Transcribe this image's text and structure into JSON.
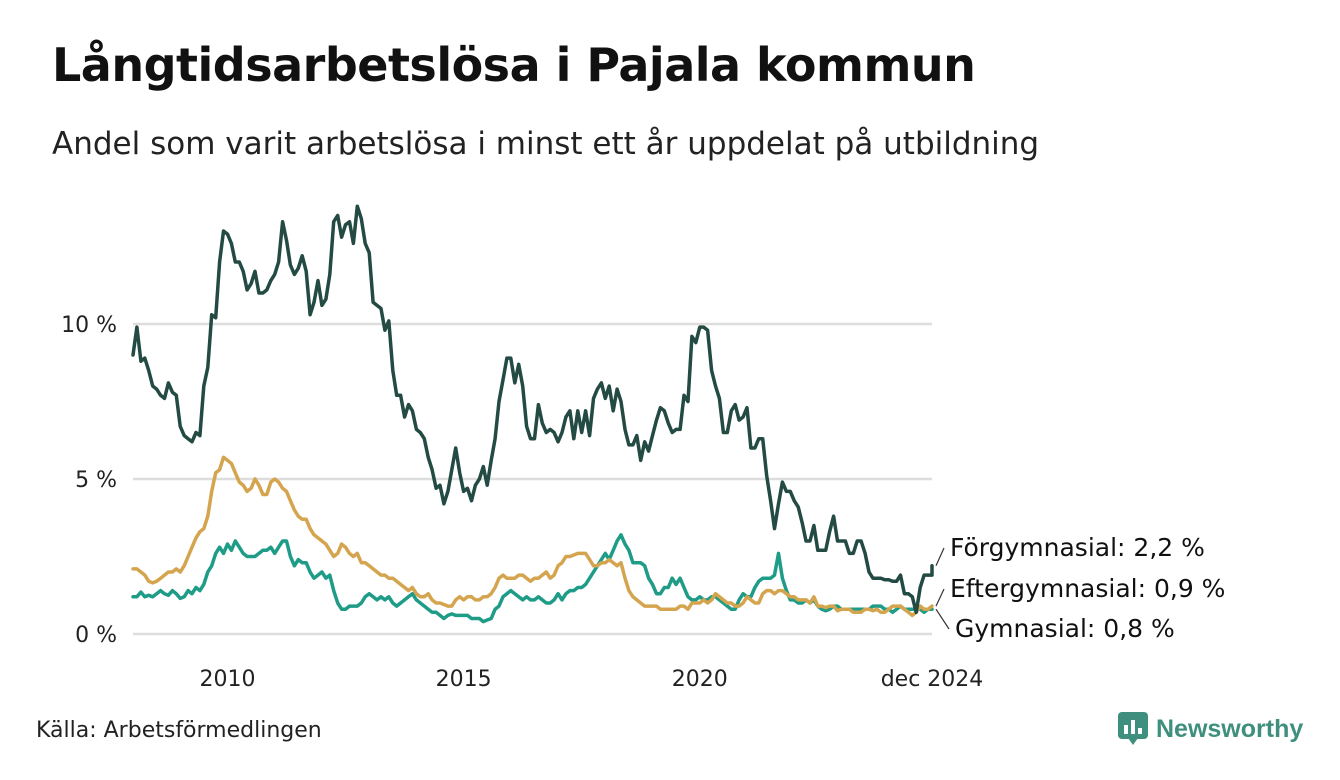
{
  "title": "Långtidsarbetslösa i Pajala kommun",
  "subtitle": "Andel som varit arbetslösa i minst ett år uppdelat på utbildning",
  "source": "Källa: Arbetsförmedlingen",
  "brand": "Newsworthy",
  "colors": {
    "forgymnasial": "#244a44",
    "eftergymnasial": "#d4a54e",
    "gymnasial": "#1f9c88",
    "grid": "#dddddd",
    "brand": "#3f8f7e"
  },
  "chart_data": {
    "type": "line",
    "title": "Långtidsarbetslösa i Pajala kommun",
    "xlabel": "",
    "ylabel": "",
    "xlim": [
      2008.0,
      2024.917
    ],
    "ylim": [
      0,
      14
    ],
    "yticks": [
      {
        "value": 0,
        "label": "0 %"
      },
      {
        "value": 5,
        "label": "5 %"
      },
      {
        "value": 10,
        "label": "10 %"
      }
    ],
    "xticks": [
      {
        "value": 2010,
        "label": "2010"
      },
      {
        "value": 2015,
        "label": "2015"
      },
      {
        "value": 2020,
        "label": "2020"
      },
      {
        "value": 2024.917,
        "label": "dec 2024"
      }
    ],
    "grid": true,
    "x_start": 2008.0,
    "x_step": 0.083333,
    "series": [
      {
        "name": "Förgymnasial",
        "label": "Förgymnasial: 2,2 %",
        "color": "#244a44",
        "values": [
          9.0,
          9.9,
          8.8,
          8.9,
          8.5,
          8.0,
          7.9,
          7.7,
          7.6,
          8.1,
          7.8,
          7.7,
          6.7,
          6.4,
          6.3,
          6.2,
          6.5,
          6.4,
          8.0,
          8.6,
          10.3,
          10.2,
          12.0,
          13.0,
          12.9,
          12.6,
          12.0,
          12.0,
          11.7,
          11.1,
          11.3,
          11.7,
          11.0,
          11.0,
          11.1,
          11.4,
          11.6,
          12.0,
          13.3,
          12.7,
          11.9,
          11.6,
          11.8,
          12.2,
          11.7,
          10.3,
          10.7,
          11.4,
          10.6,
          10.8,
          11.6,
          13.3,
          13.5,
          12.8,
          13.2,
          13.3,
          12.6,
          13.8,
          13.4,
          12.6,
          12.3,
          10.7,
          10.6,
          10.5,
          9.8,
          10.1,
          8.5,
          7.7,
          7.7,
          7.0,
          7.4,
          7.2,
          6.6,
          6.5,
          6.3,
          5.7,
          5.3,
          4.7,
          4.8,
          4.2,
          4.6,
          5.3,
          6.0,
          5.2,
          4.6,
          4.7,
          4.3,
          4.8,
          5.0,
          5.4,
          4.8,
          5.6,
          6.3,
          7.5,
          8.2,
          8.9,
          8.9,
          8.1,
          8.7,
          8.0,
          6.7,
          6.3,
          6.3,
          7.4,
          6.8,
          6.5,
          6.6,
          6.5,
          6.2,
          6.5,
          7.0,
          7.2,
          6.3,
          7.2,
          6.5,
          7.2,
          6.4,
          7.6,
          7.9,
          8.1,
          7.6,
          8.0,
          7.2,
          7.9,
          7.5,
          6.6,
          6.1,
          6.1,
          6.4,
          5.6,
          6.2,
          5.9,
          6.4,
          6.9,
          7.3,
          7.2,
          6.8,
          6.5,
          6.6,
          6.6,
          7.7,
          7.5,
          9.6,
          9.4,
          9.9,
          9.9,
          9.8,
          8.5,
          8.0,
          7.6,
          6.5,
          6.5,
          7.2,
          7.4,
          6.9,
          7.0,
          7.3,
          6.0,
          6.0,
          6.3,
          6.3,
          5.1,
          4.3,
          3.4,
          4.2,
          4.9,
          4.6,
          4.6,
          4.3,
          4.1,
          3.6,
          3.0,
          3.0,
          3.5,
          2.7,
          2.7,
          2.7,
          3.3,
          3.8,
          3.0,
          3.0,
          3.0,
          2.6,
          2.6,
          3.0,
          3.0,
          2.6,
          2.0,
          1.8,
          1.8,
          1.8,
          1.75,
          1.75,
          1.7,
          1.7,
          1.9,
          1.3,
          1.3,
          1.2,
          0.7,
          1.5,
          1.9,
          1.9,
          1.9,
          2.2,
          2.2
        ]
      },
      {
        "name": "Eftergymnasial",
        "label": "Eftergymnasial: 0,9 %",
        "color": "#d4a54e",
        "values": [
          2.1,
          2.1,
          2.0,
          1.9,
          1.7,
          1.65,
          1.7,
          1.8,
          1.9,
          2.0,
          2.0,
          2.1,
          2.0,
          2.2,
          2.5,
          2.8,
          3.1,
          3.3,
          3.4,
          3.8,
          4.6,
          5.2,
          5.3,
          5.7,
          5.6,
          5.5,
          5.2,
          4.9,
          4.8,
          4.6,
          4.7,
          5.0,
          4.8,
          4.5,
          4.5,
          4.9,
          5.0,
          4.9,
          4.7,
          4.6,
          4.3,
          4.0,
          3.8,
          3.7,
          3.7,
          3.4,
          3.2,
          3.1,
          3.0,
          2.9,
          2.7,
          2.5,
          2.6,
          2.9,
          2.8,
          2.6,
          2.5,
          2.6,
          2.3,
          2.3,
          2.2,
          2.1,
          2.0,
          1.9,
          1.9,
          1.8,
          1.8,
          1.7,
          1.6,
          1.5,
          1.4,
          1.5,
          1.3,
          1.2,
          1.2,
          1.3,
          1.1,
          1.0,
          1.0,
          0.95,
          0.9,
          0.9,
          1.1,
          1.2,
          1.1,
          1.2,
          1.2,
          1.1,
          1.1,
          1.2,
          1.2,
          1.3,
          1.5,
          1.8,
          1.9,
          1.8,
          1.8,
          1.8,
          1.9,
          1.9,
          1.8,
          1.7,
          1.8,
          1.8,
          1.9,
          2.0,
          1.8,
          1.9,
          2.2,
          2.3,
          2.5,
          2.5,
          2.55,
          2.6,
          2.6,
          2.6,
          2.4,
          2.2,
          2.2,
          2.3,
          2.3,
          2.4,
          2.3,
          2.2,
          2.3,
          1.8,
          1.4,
          1.2,
          1.1,
          1.0,
          0.9,
          0.9,
          0.9,
          0.9,
          0.8,
          0.8,
          0.8,
          0.8,
          0.8,
          0.9,
          0.9,
          0.8,
          1.0,
          1.0,
          1.0,
          1.1,
          1.0,
          1.1,
          1.3,
          1.2,
          1.1,
          1.0,
          1.0,
          0.9,
          0.9,
          1.0,
          1.2,
          1.1,
          1.0,
          1.0,
          1.3,
          1.4,
          1.4,
          1.3,
          1.4,
          1.4,
          1.3,
          1.2,
          1.2,
          1.1,
          1.1,
          1.1,
          1.0,
          1.2,
          0.9,
          0.9,
          0.85,
          0.9,
          0.9,
          0.75,
          0.8,
          0.8,
          0.8,
          0.7,
          0.7,
          0.7,
          0.8,
          0.8,
          0.75,
          0.8,
          0.7,
          0.7,
          0.8,
          0.9,
          0.9,
          0.9,
          0.8,
          0.7,
          0.6,
          0.7,
          0.9,
          0.8,
          0.8,
          0.9
        ]
      },
      {
        "name": "Gymnasial",
        "label": "Gymnasial: 0,8 %",
        "color": "#1f9c88",
        "values": [
          1.2,
          1.2,
          1.35,
          1.2,
          1.25,
          1.2,
          1.3,
          1.4,
          1.3,
          1.25,
          1.4,
          1.3,
          1.15,
          1.2,
          1.4,
          1.3,
          1.5,
          1.4,
          1.6,
          2.0,
          2.2,
          2.6,
          2.8,
          2.6,
          2.9,
          2.7,
          3.0,
          2.8,
          2.6,
          2.5,
          2.5,
          2.5,
          2.6,
          2.7,
          2.7,
          2.8,
          2.6,
          2.8,
          3.0,
          3.0,
          2.5,
          2.2,
          2.4,
          2.3,
          2.3,
          2.0,
          1.8,
          1.9,
          2.0,
          1.8,
          1.9,
          1.4,
          1.0,
          0.8,
          0.8,
          0.9,
          0.9,
          0.9,
          1.0,
          1.2,
          1.3,
          1.2,
          1.1,
          1.2,
          1.1,
          1.2,
          1.0,
          0.9,
          1.0,
          1.1,
          1.2,
          1.3,
          1.1,
          1.0,
          0.9,
          0.8,
          0.7,
          0.7,
          0.6,
          0.5,
          0.6,
          0.65,
          0.6,
          0.6,
          0.6,
          0.6,
          0.5,
          0.5,
          0.5,
          0.4,
          0.45,
          0.5,
          0.8,
          0.9,
          1.2,
          1.3,
          1.4,
          1.3,
          1.2,
          1.1,
          1.2,
          1.1,
          1.1,
          1.2,
          1.1,
          1.0,
          1.0,
          1.1,
          1.3,
          1.1,
          1.3,
          1.4,
          1.4,
          1.5,
          1.5,
          1.6,
          1.8,
          2.0,
          2.2,
          2.4,
          2.6,
          2.4,
          2.7,
          3.0,
          3.2,
          2.9,
          2.7,
          2.3,
          2.3,
          2.3,
          2.2,
          1.8,
          1.6,
          1.3,
          1.3,
          1.5,
          1.5,
          1.8,
          1.6,
          1.8,
          1.5,
          1.2,
          1.1,
          1.1,
          1.2,
          1.1,
          1.1,
          1.2,
          1.2,
          1.1,
          1.0,
          0.9,
          0.8,
          0.8,
          1.1,
          1.3,
          1.2,
          1.2,
          1.5,
          1.7,
          1.8,
          1.8,
          1.8,
          1.9,
          2.6,
          1.8,
          1.4,
          1.1,
          1.1,
          1.0,
          1.0,
          1.1,
          1.0,
          1.1,
          0.9,
          0.8,
          0.75,
          0.8,
          0.9,
          0.9,
          0.8,
          0.8,
          0.8,
          0.8,
          0.8,
          0.8,
          0.8,
          0.8,
          0.9,
          0.9,
          0.9,
          0.8,
          0.8,
          0.7,
          0.8,
          0.9,
          0.8,
          0.8,
          0.8,
          0.8,
          0.8,
          0.7,
          0.8,
          0.8
        ]
      }
    ]
  }
}
